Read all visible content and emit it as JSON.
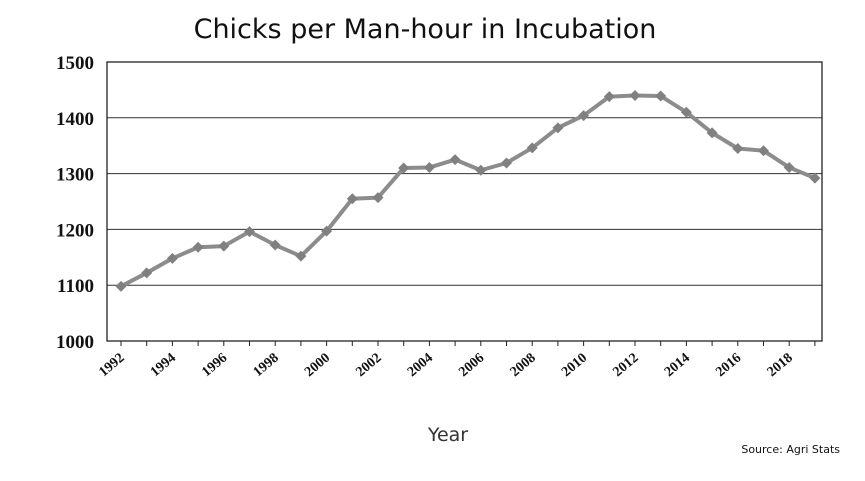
{
  "chart_data": {
    "type": "line",
    "title": "Chicks per Man-hour in Incubation",
    "xlabel": "Year",
    "ylabel": "",
    "source": "Source: Agri Stats",
    "ylim": [
      1000,
      1500
    ],
    "yticks": [
      1000,
      1100,
      1200,
      1300,
      1400,
      1500
    ],
    "xticks": [
      "1992",
      "1994",
      "1996",
      "1998",
      "2000",
      "2002",
      "2004",
      "2006",
      "2008",
      "2010",
      "2012",
      "2014",
      "2016",
      "2018"
    ],
    "grid": true,
    "legend": "none",
    "colors": {
      "line": "#8c8c8c",
      "marker": "#808080",
      "grid": "#333333",
      "axis": "#222222"
    },
    "series": [
      {
        "x": [
          1992,
          1993,
          1994,
          1995,
          1996,
          1997,
          1998,
          1999,
          2000,
          2001,
          2002,
          2003,
          2004,
          2005,
          2006,
          2007,
          2008,
          2009,
          2010,
          2011,
          2012,
          2013,
          2014,
          2015,
          2016,
          2017,
          2018,
          2019
        ],
        "values": [
          1098,
          1122,
          1148,
          1168,
          1170,
          1196,
          1172,
          1152,
          1197,
          1255,
          1257,
          1310,
          1311,
          1325,
          1306,
          1319,
          1346,
          1382,
          1404,
          1438,
          1440,
          1439,
          1410,
          1373,
          1345,
          1341,
          1311,
          1292
        ]
      }
    ]
  }
}
